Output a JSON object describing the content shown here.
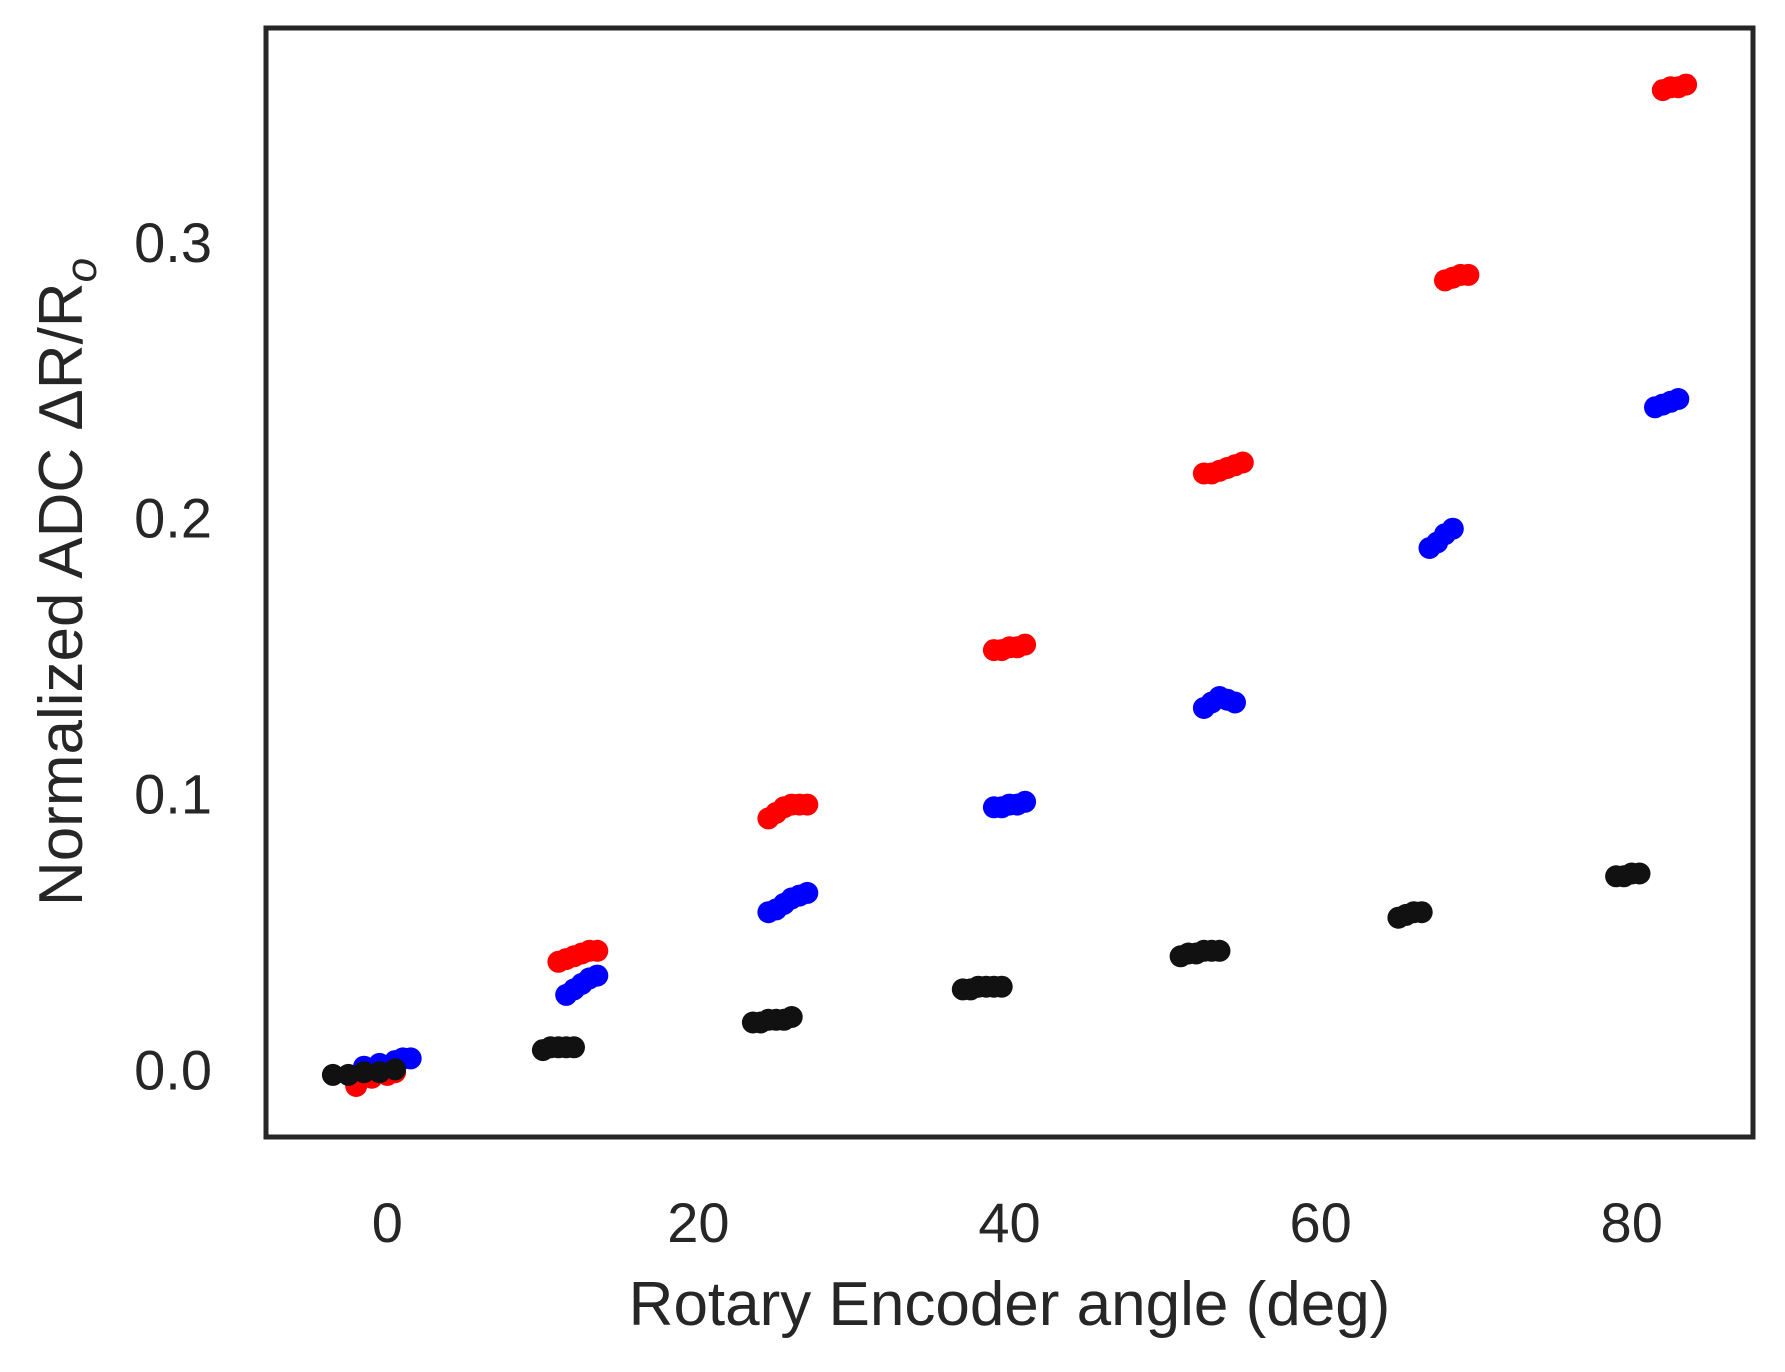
{
  "chart_data": {
    "type": "scatter",
    "title": "",
    "xlabel": "Rotary Encoder angle (deg)",
    "ylabel": "Normalized ADC ΔR/R",
    "ylabel_subscript": "o",
    "xlim": [
      -7.8,
      87.8
    ],
    "ylim": [
      -0.0245,
      0.3775
    ],
    "x_ticks": [
      0,
      20,
      40,
      60,
      80
    ],
    "y_ticks": [
      0.0,
      0.1,
      0.2,
      0.3
    ],
    "x_tick_labels": [
      "0",
      "20",
      "40",
      "60",
      "80"
    ],
    "y_tick_labels": [
      "0.0",
      "0.1",
      "0.2",
      "0.3"
    ],
    "grid": false,
    "legend": "none",
    "series": [
      {
        "color": "#ff0000",
        "clusters": [
          {
            "x": [
              -2.0,
              -1.0,
              0.0,
              0.5
            ],
            "y": [
              -0.006,
              -0.003,
              -0.002,
              -0.001
            ]
          },
          {
            "x": [
              11.0,
              11.5,
              12.0,
              12.5,
              13.0,
              13.5
            ],
            "y": [
              0.039,
              0.04,
              0.041,
              0.042,
              0.043,
              0.043
            ]
          },
          {
            "x": [
              24.5,
              25.0,
              25.5,
              26.0,
              26.5,
              27.0
            ],
            "y": [
              0.091,
              0.093,
              0.095,
              0.096,
              0.096,
              0.096
            ]
          },
          {
            "x": [
              39.0,
              39.5,
              40.0,
              40.5,
              41.0
            ],
            "y": [
              0.152,
              0.152,
              0.153,
              0.153,
              0.154
            ]
          },
          {
            "x": [
              52.5,
              53.0,
              53.5,
              54.0,
              54.5,
              55.0
            ],
            "y": [
              0.216,
              0.216,
              0.217,
              0.218,
              0.219,
              0.22
            ]
          },
          {
            "x": [
              68.0,
              68.5,
              69.0,
              69.5
            ],
            "y": [
              0.286,
              0.287,
              0.288,
              0.288
            ]
          },
          {
            "x": [
              82.0,
              82.5,
              83.0,
              83.5
            ],
            "y": [
              0.355,
              0.356,
              0.356,
              0.357
            ]
          }
        ]
      },
      {
        "color": "#0000ff",
        "clusters": [
          {
            "x": [
              -1.5,
              -0.5,
              0.5,
              1.0,
              1.5
            ],
            "y": [
              0.001,
              0.002,
              0.003,
              0.004,
              0.004
            ]
          },
          {
            "x": [
              11.5,
              12.0,
              12.5,
              13.0,
              13.5
            ],
            "y": [
              0.027,
              0.029,
              0.031,
              0.033,
              0.034
            ]
          },
          {
            "x": [
              24.5,
              25.0,
              25.5,
              26.0,
              26.5,
              27.0
            ],
            "y": [
              0.057,
              0.058,
              0.06,
              0.062,
              0.063,
              0.064
            ]
          },
          {
            "x": [
              39.0,
              39.5,
              40.0,
              40.5,
              41.0
            ],
            "y": [
              0.095,
              0.095,
              0.096,
              0.096,
              0.097
            ]
          },
          {
            "x": [
              52.5,
              53.0,
              53.5,
              54.0,
              54.5
            ],
            "y": [
              0.131,
              0.133,
              0.135,
              0.134,
              0.133
            ]
          },
          {
            "x": [
              67.0,
              67.5,
              68.0,
              68.5
            ],
            "y": [
              0.189,
              0.191,
              0.194,
              0.196
            ]
          },
          {
            "x": [
              81.5,
              82.0,
              82.5,
              83.0
            ],
            "y": [
              0.24,
              0.241,
              0.242,
              0.243
            ]
          }
        ]
      },
      {
        "color": "#111111",
        "clusters": [
          {
            "x": [
              -3.5,
              -2.5,
              -1.5,
              -0.5,
              0.5
            ],
            "y": [
              -0.002,
              -0.002,
              -0.001,
              -0.001,
              0.0
            ]
          },
          {
            "x": [
              10.0,
              10.5,
              11.0,
              11.5,
              12.0
            ],
            "y": [
              0.007,
              0.008,
              0.008,
              0.008,
              0.008
            ]
          },
          {
            "x": [
              23.5,
              24.0,
              24.5,
              25.0,
              25.5,
              26.0
            ],
            "y": [
              0.017,
              0.017,
              0.018,
              0.018,
              0.018,
              0.019
            ]
          },
          {
            "x": [
              37.0,
              37.5,
              38.0,
              38.5,
              39.0,
              39.5
            ],
            "y": [
              0.029,
              0.029,
              0.03,
              0.03,
              0.03,
              0.03
            ]
          },
          {
            "x": [
              51.0,
              51.5,
              52.0,
              52.5,
              53.0,
              53.5
            ],
            "y": [
              0.041,
              0.042,
              0.042,
              0.043,
              0.043,
              0.043
            ]
          },
          {
            "x": [
              65.0,
              65.5,
              66.0,
              66.5
            ],
            "y": [
              0.055,
              0.056,
              0.057,
              0.057
            ]
          },
          {
            "x": [
              79.0,
              79.5,
              80.0,
              80.5
            ],
            "y": [
              0.07,
              0.07,
              0.071,
              0.071
            ]
          }
        ]
      }
    ]
  }
}
